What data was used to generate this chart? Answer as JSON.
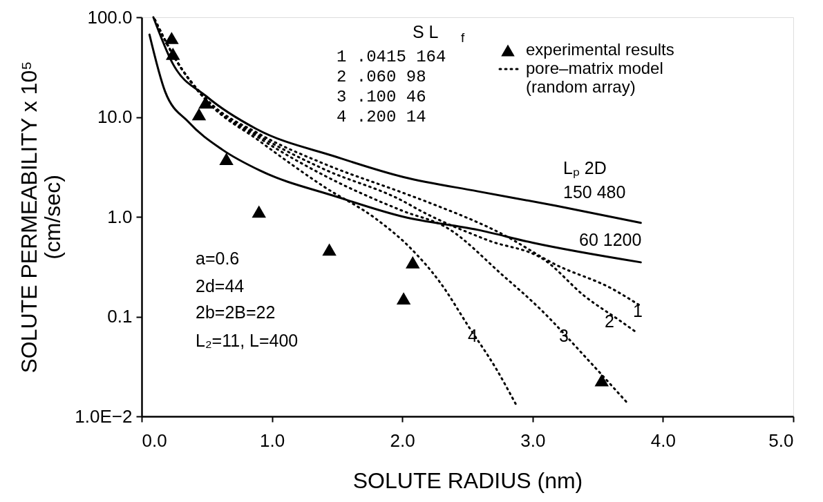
{
  "chart_data": {
    "type": "line",
    "xlabel": "SOLUTE RADIUS (nm)",
    "ylabel": "SOLUTE PERMEABILITY x 10⁵\n(cm/sec)",
    "log": "y",
    "xlim": [
      0,
      5
    ],
    "xticks": [
      {
        "value": 0,
        "label": "0.0"
      },
      {
        "value": 1,
        "label": "1.0"
      },
      {
        "value": 2,
        "label": "2.0"
      },
      {
        "value": 3,
        "label": "3.0"
      },
      {
        "value": 4,
        "label": "4.0"
      },
      {
        "value": 5,
        "label": "5.0"
      }
    ],
    "ylim": [
      0.01,
      100
    ],
    "yticks": [
      {
        "value": 0.01,
        "label": "1.0E−2"
      },
      {
        "value": 0.1,
        "label": "0.1"
      },
      {
        "value": 1,
        "label": "1.0"
      },
      {
        "value": 10,
        "label": "10.0"
      },
      {
        "value": 100,
        "label": "100.0"
      }
    ],
    "grid": false,
    "legend": "top right",
    "series": [
      {
        "type": "scatter",
        "name": "experimental results",
        "color": "#000000",
        "marker": "triangle",
        "x": [
          0.23,
          0.24,
          0.49,
          0.44,
          0.65,
          0.9,
          1.44,
          2.08,
          2.01,
          3.53
        ],
        "values": [
          62,
          43,
          14,
          10.7,
          3.8,
          1.13,
          0.47,
          0.35,
          0.152,
          0.023
        ]
      },
      {
        "color": "#000000",
        "line_style": "solid",
        "x": [
          0.09,
          0.235,
          0.5,
          0.88,
          1.49,
          2.01,
          2.58,
          3.18,
          3.83
        ],
        "values": [
          100,
          35,
          16,
          7.6,
          4.0,
          2.5,
          1.8,
          1.29,
          0.87
        ]
      },
      {
        "color": "#000000",
        "line_style": "solid",
        "x": [
          0.06,
          0.18,
          0.36,
          0.62,
          0.91,
          1.49,
          2.01,
          2.58,
          3.0,
          3.83
        ],
        "values": [
          67,
          18,
          8.9,
          4.7,
          2.9,
          1.6,
          1.0,
          0.74,
          0.55,
          0.35
        ]
      },
      {
        "name": "pore–matrix model\n(random array)",
        "color": "#000000",
        "line_style": "dotted",
        "x": [
          0.1,
          0.25,
          0.5,
          0.9,
          1.4,
          2.0,
          2.21,
          2.75,
          3.18,
          3.61,
          3.82
        ],
        "values": [
          95,
          40,
          15,
          6.8,
          3.4,
          1.75,
          1.38,
          0.69,
          0.33,
          0.19,
          0.13
        ]
      },
      {
        "color": "#000000",
        "line_style": "dotted",
        "x": [
          0.1,
          0.25,
          0.5,
          0.9,
          1.4,
          2.0,
          2.14,
          2.66,
          3.09,
          3.4,
          3.67,
          3.8
        ],
        "values": [
          95,
          40,
          14.5,
          6.5,
          3.0,
          1.45,
          1.15,
          0.58,
          0.37,
          0.16,
          0.091,
          0.069
        ]
      },
      {
        "color": "#000000",
        "line_style": "dotted",
        "x": [
          0.1,
          0.25,
          0.5,
          0.9,
          1.4,
          2.0,
          2.34,
          2.77,
          3.07,
          3.4,
          3.73
        ],
        "values": [
          95,
          40,
          14.5,
          6.2,
          2.6,
          1.15,
          0.78,
          0.26,
          0.115,
          0.04,
          0.0135
        ]
      },
      {
        "color": "#000000",
        "line_style": "dotted",
        "x": [
          0.1,
          0.25,
          0.5,
          0.9,
          1.4,
          1.8,
          2.06,
          2.29,
          2.51,
          2.72,
          2.88
        ],
        "values": [
          95,
          40,
          14.5,
          5.8,
          2.0,
          0.95,
          0.49,
          0.22,
          0.079,
          0.03,
          0.0126
        ]
      }
    ],
    "annotations": [
      "S   L$_{f}$",
      "1  .0415 164",
      "2  .060    98",
      "3  .100    46",
      "4  .200    14",
      "a=0.6",
      "2d=44",
      "2b=2B=22",
      "L₂=11, L=400",
      "Lₚ  2D",
      "150 480",
      "60 1200",
      "1",
      "2",
      "3",
      "4"
    ]
  }
}
